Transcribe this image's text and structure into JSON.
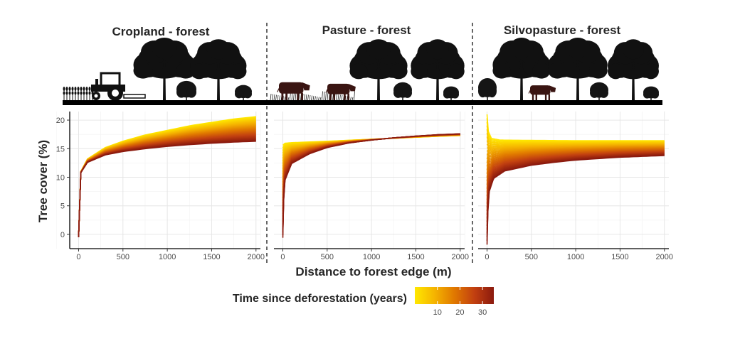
{
  "chart_data": {
    "type": "line",
    "panels": [
      {
        "title": "Cropland - forest",
        "series_range": {
          "young": [
            [
              0,
              -0.5
            ],
            [
              25,
              11
            ],
            [
              100,
              13.2
            ],
            [
              300,
              15.2
            ],
            [
              500,
              16.3
            ],
            [
              750,
              17.4
            ],
            [
              1000,
              18.2
            ],
            [
              1250,
              19.0
            ],
            [
              1500,
              19.6
            ],
            [
              1750,
              20.2
            ],
            [
              2000,
              20.6
            ]
          ],
          "old": [
            [
              0,
              -0.5
            ],
            [
              25,
              10.8
            ],
            [
              100,
              12.6
            ],
            [
              300,
              13.9
            ],
            [
              500,
              14.5
            ],
            [
              750,
              15.0
            ],
            [
              1000,
              15.4
            ],
            [
              1250,
              15.7
            ],
            [
              1500,
              15.95
            ],
            [
              1750,
              16.15
            ],
            [
              2000,
              16.3
            ]
          ]
        },
        "scene": [
          "tractor",
          "crops",
          "trees"
        ]
      },
      {
        "title": "Pasture - forest",
        "series_range": {
          "young": [
            [
              0,
              15.6
            ],
            [
              25,
              15.95
            ],
            [
              100,
              16.05
            ],
            [
              500,
              16.3
            ],
            [
              1000,
              16.65
            ],
            [
              1500,
              17.0
            ],
            [
              1800,
              17.2
            ],
            [
              2000,
              17.3
            ]
          ],
          "old": [
            [
              0,
              -0.6
            ],
            [
              10,
              6
            ],
            [
              25,
              9.5
            ],
            [
              100,
              12.4
            ],
            [
              300,
              14.1
            ],
            [
              500,
              15.2
            ],
            [
              750,
              16.0
            ],
            [
              1000,
              16.5
            ],
            [
              1250,
              16.9
            ],
            [
              1500,
              17.2
            ],
            [
              1750,
              17.45
            ],
            [
              2000,
              17.6
            ]
          ],
          "crossover_x": 1500
        },
        "scene": [
          "cows",
          "trees"
        ]
      },
      {
        "title": "Silvopasture - forest",
        "series_range": {
          "young": [
            [
              0,
              21
            ],
            [
              15,
              18
            ],
            [
              50,
              16.8
            ],
            [
              150,
              16.5
            ],
            [
              500,
              16.45
            ],
            [
              1000,
              16.4
            ],
            [
              1500,
              16.4
            ],
            [
              2000,
              16.4
            ]
          ],
          "old": [
            [
              0,
              -1.8
            ],
            [
              10,
              4
            ],
            [
              25,
              7.5
            ],
            [
              75,
              9.8
            ],
            [
              200,
              11.1
            ],
            [
              500,
              12.1
            ],
            [
              750,
              12.6
            ],
            [
              1000,
              13.0
            ],
            [
              1500,
              13.5
            ],
            [
              2000,
              13.8
            ]
          ]
        },
        "scene": [
          "cow",
          "trees"
        ]
      }
    ],
    "x_axis": {
      "label": "Distance to forest edge (m)",
      "ticks": [
        0,
        500,
        1000,
        1500,
        2000
      ],
      "range": [
        -100,
        2050
      ]
    },
    "y_axis": {
      "label": "Tree cover (%)",
      "ticks": [
        0,
        5,
        10,
        15,
        20
      ],
      "range": [
        -2.5,
        21.5
      ]
    },
    "legend": {
      "title": "Time since deforestation (years)",
      "ticks": [
        10,
        20,
        30
      ],
      "range": [
        0,
        35
      ],
      "colors": [
        "#ffe800",
        "#f5b400",
        "#e07800",
        "#c24010",
        "#8b1a0e"
      ],
      "placement": "bottom"
    },
    "grid": true,
    "n_series": 36
  }
}
